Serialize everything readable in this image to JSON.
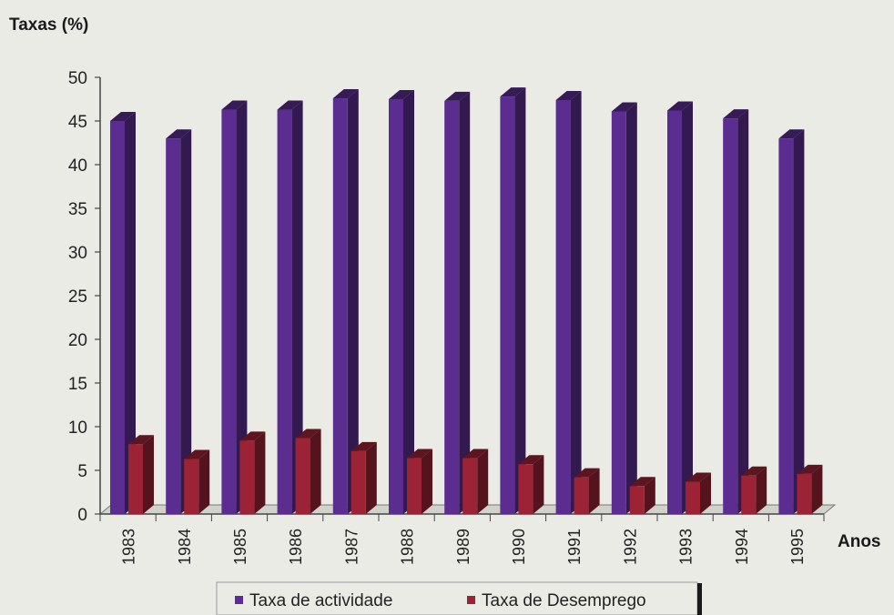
{
  "chart_data": {
    "type": "bar",
    "title": "",
    "ylabel": "Taxas (%)",
    "xlabel": "Anos",
    "ylim": [
      0,
      50
    ],
    "yticks": [
      0,
      5,
      10,
      15,
      20,
      25,
      30,
      35,
      40,
      45,
      50
    ],
    "grid": false,
    "legend_position": "bottom",
    "categories": [
      "1983",
      "1984",
      "1985",
      "1986",
      "1987",
      "1988",
      "1989",
      "1990",
      "1991",
      "1992",
      "1993",
      "1994",
      "1995"
    ],
    "series": [
      {
        "name": "Taxa de actividade",
        "color": "#5b2d91",
        "values": [
          45,
          43,
          46.3,
          46.3,
          47.6,
          47.5,
          47.3,
          47.8,
          47.4,
          46.1,
          46.2,
          45.3,
          43
        ]
      },
      {
        "name": "Taxa de Desemprego",
        "color": "#9b2335",
        "values": [
          8,
          6.3,
          8.4,
          8.7,
          7.2,
          6.4,
          6.4,
          5.7,
          4.2,
          3.2,
          3.7,
          4.4,
          4.6
        ]
      }
    ]
  }
}
